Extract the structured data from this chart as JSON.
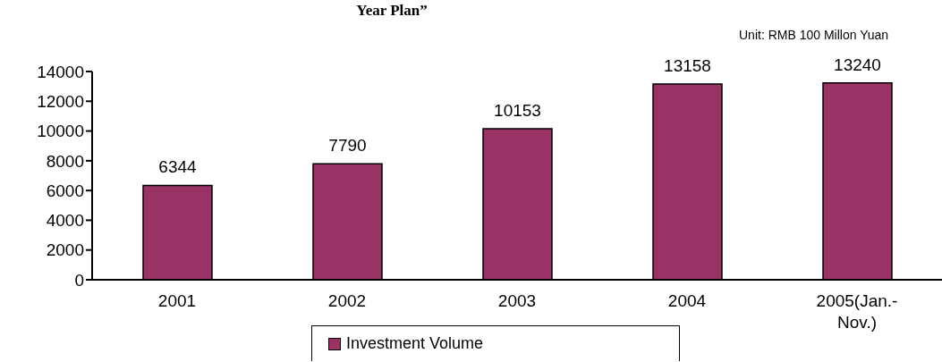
{
  "chart_data": {
    "type": "bar",
    "title": "Year Plan”",
    "annotations": [
      "Unit: RMB 100 Millon Yuan"
    ],
    "categories": [
      "2001",
      "2002",
      "2003",
      "2004",
      "2005(Jan.-Nov.)"
    ],
    "series": [
      {
        "name": "Investment Volume",
        "color": "#993366",
        "values": [
          6344,
          7790,
          10153,
          13158,
          13240
        ]
      }
    ],
    "ylim": [
      0,
      14000
    ],
    "yticks": [
      0,
      2000,
      4000,
      6000,
      8000,
      10000,
      12000,
      14000
    ],
    "data_labels": true,
    "grid": false,
    "legend": "bottom"
  }
}
